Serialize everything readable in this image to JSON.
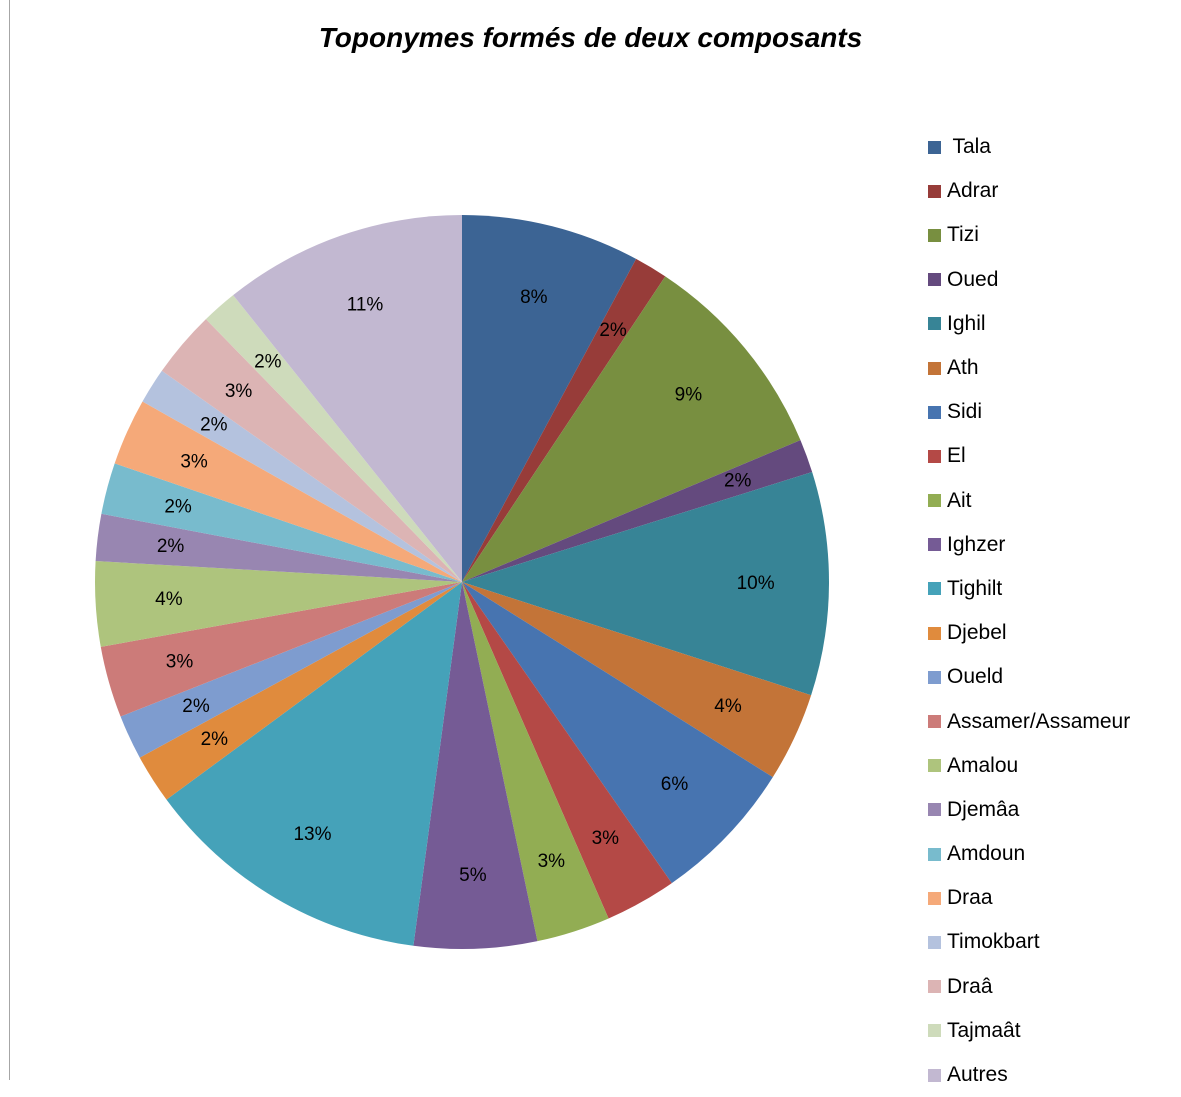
{
  "chart_data": {
    "type": "pie",
    "title": "Toponymes formés  de deux composants",
    "legend_position": "right",
    "slices": [
      {
        "label": " Tala",
        "value": 8,
        "value_label": "8%",
        "color": "#3c6494"
      },
      {
        "label": "Adrar",
        "value": 1.5,
        "value_label": "2%",
        "color": "#973c39"
      },
      {
        "label": "Tizi",
        "value": 9.5,
        "value_label": "9%",
        "color": "#788f40"
      },
      {
        "label": "Oued",
        "value": 1.5,
        "value_label": "2%",
        "color": "#644a7e"
      },
      {
        "label": "Ighil",
        "value": 10,
        "value_label": "10%",
        "color": "#378496"
      },
      {
        "label": "Ath",
        "value": 4,
        "value_label": "4%",
        "color": "#c37438"
      },
      {
        "label": "Sidi",
        "value": 6.5,
        "value_label": "6%",
        "color": "#4774b0"
      },
      {
        "label": "El",
        "value": 3.2,
        "value_label": "3%",
        "color": "#b44946"
      },
      {
        "label": "Ait",
        "value": 3.3,
        "value_label": "3%",
        "color": "#92ad53"
      },
      {
        "label": "Ighzer",
        "value": 5.5,
        "value_label": "5%",
        "color": "#755b95"
      },
      {
        "label": "Tighilt",
        "value": 13,
        "value_label": "13%",
        "color": "#45a2b9"
      },
      {
        "label": "Djebel",
        "value": 2.2,
        "value_label": "2%",
        "color": "#e08b3d"
      },
      {
        "label": "Oueld",
        "value": 2,
        "value_label": "2%",
        "color": "#7e9ccf"
      },
      {
        "label": "Assamer/Assameur",
        "value": 3.2,
        "value_label": "3%",
        "color": "#cc7b79"
      },
      {
        "label": "Amalou",
        "value": 3.8,
        "value_label": "4%",
        "color": "#aec47d"
      },
      {
        "label": "Djemâa",
        "value": 2.1,
        "value_label": "2%",
        "color": "#9886b1"
      },
      {
        "label": "Amdoun",
        "value": 2.3,
        "value_label": "2%",
        "color": "#78bbcd"
      },
      {
        "label": "Draa",
        "value": 3,
        "value_label": "3%",
        "color": "#f5a979"
      },
      {
        "label": "Timokbart",
        "value": 1.6,
        "value_label": "2%",
        "color": "#b4c2de"
      },
      {
        "label": "Draâ",
        "value": 3,
        "value_label": "3%",
        "color": "#dcb4b4"
      },
      {
        "label": "Tajmaât",
        "value": 1.6,
        "value_label": "2%",
        "color": "#cedbbb"
      },
      {
        "label": "Autres",
        "value": 10.9,
        "value_label": "11%",
        "color": "#c2b8d1"
      }
    ]
  }
}
